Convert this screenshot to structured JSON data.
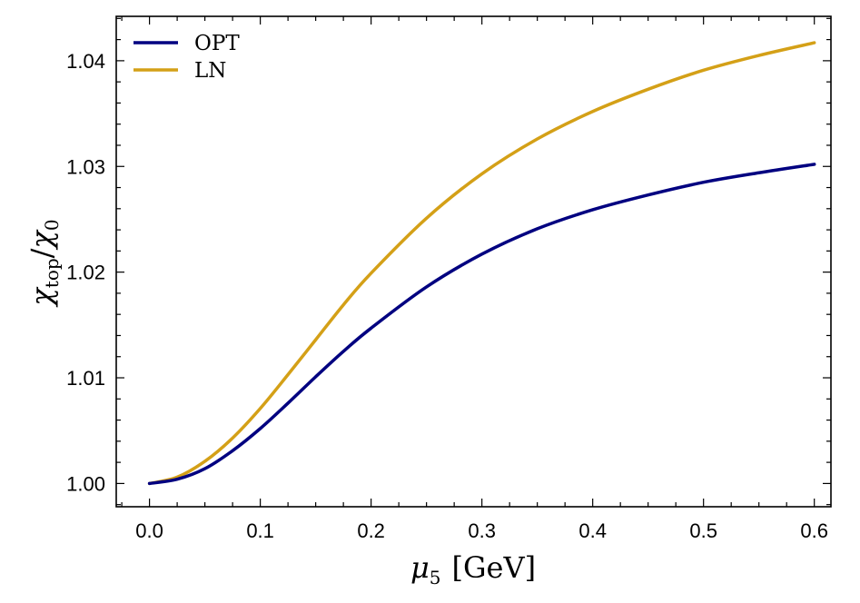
{
  "chart_data": {
    "type": "line",
    "title": "",
    "xlabel": {
      "symbol": "μ",
      "subscript": "5",
      "unit": "[GeV]"
    },
    "ylabel": {
      "numerator_symbol": "χ",
      "numerator_subscript": "top",
      "slash": "/",
      "denominator_symbol": "χ",
      "denominator_subscript": "0"
    },
    "xlim": [
      -0.03,
      0.615
    ],
    "ylim": [
      0.9978,
      1.0442
    ],
    "x_ticks": [
      0.0,
      0.1,
      0.2,
      0.3,
      0.4,
      0.5,
      0.6
    ],
    "x_tick_labels": [
      "0.0",
      "0.1",
      "0.2",
      "0.3",
      "0.4",
      "0.5",
      "0.6"
    ],
    "y_ticks": [
      1.0,
      1.01,
      1.02,
      1.03,
      1.04
    ],
    "y_tick_labels": [
      "1.00",
      "1.01",
      "1.02",
      "1.03",
      "1.04"
    ],
    "grid": false,
    "legend_position": "top-left",
    "series": [
      {
        "name": "OPT",
        "color": "#000080",
        "x": [
          0.0,
          0.025,
          0.05,
          0.075,
          0.1,
          0.125,
          0.15,
          0.175,
          0.2,
          0.25,
          0.3,
          0.35,
          0.4,
          0.45,
          0.5,
          0.55,
          0.6
        ],
        "y": [
          1.0,
          1.0004,
          1.0014,
          1.0031,
          1.0052,
          1.0076,
          1.0101,
          1.0125,
          1.0147,
          1.0186,
          1.0217,
          1.0241,
          1.0259,
          1.0273,
          1.0285,
          1.0294,
          1.0302
        ]
      },
      {
        "name": "LN",
        "color": "#D4A017",
        "x": [
          0.0,
          0.025,
          0.05,
          0.075,
          0.1,
          0.125,
          0.15,
          0.175,
          0.2,
          0.25,
          0.3,
          0.35,
          0.4,
          0.45,
          0.5,
          0.55,
          0.6
        ],
        "y": [
          1.0,
          1.0006,
          1.0021,
          1.0043,
          1.0071,
          1.0103,
          1.0136,
          1.0169,
          1.0199,
          1.0251,
          1.0293,
          1.0326,
          1.0352,
          1.0373,
          1.0391,
          1.0405,
          1.0417
        ]
      }
    ]
  }
}
